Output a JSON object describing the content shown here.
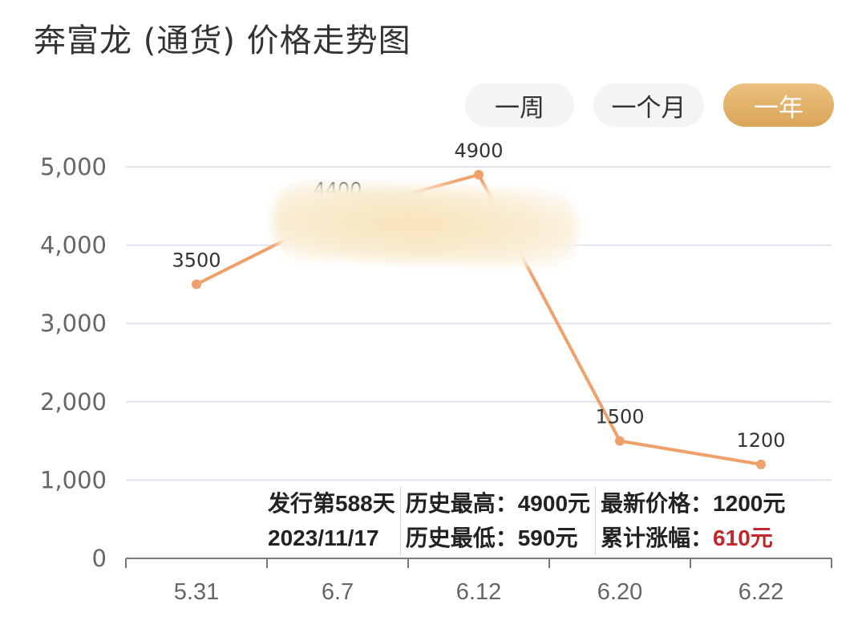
{
  "header": {
    "title": "奔富龙 (通货) 价格走势图"
  },
  "tabs": [
    {
      "label": "一周",
      "active": false
    },
    {
      "label": "一个月",
      "active": false
    },
    {
      "label": "一年",
      "active": true
    }
  ],
  "colors": {
    "line": "#f0a06a",
    "active_tab": "#dfae64",
    "grid": "#e3e4ef",
    "highlight": "#c0282d"
  },
  "chart_data": {
    "type": "line",
    "title": "奔富龙 (通货) 价格走势图",
    "categories": [
      "5.31",
      "6.7",
      "6.12",
      "6.20",
      "6.22"
    ],
    "values": [
      3500,
      4400,
      4900,
      1500,
      1200
    ],
    "data_labels": [
      "3500",
      "4400",
      "4900",
      "1500",
      "1200"
    ],
    "yticks": [
      "0",
      "1,000",
      "2,000",
      "3,000",
      "4,000",
      "5,000"
    ],
    "ylim": [
      0,
      5000
    ],
    "xlabel": "",
    "ylabel": "",
    "grid": true,
    "legend": null
  },
  "info": {
    "issue_day": "发行第588天",
    "date": "2023/11/17",
    "hist_high_label": "历史最高：",
    "hist_high_value": "4900元",
    "hist_low_label": "历史最低：",
    "hist_low_value": "590元",
    "latest_label": "最新价格：",
    "latest_value": "1200元",
    "change_label": "累计涨幅：",
    "change_value": "610元"
  }
}
